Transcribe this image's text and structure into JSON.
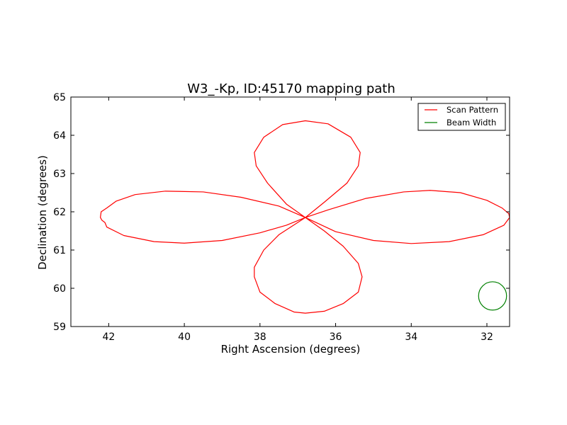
{
  "chart_data": {
    "type": "line",
    "title": "W3_-Kp, ID:45170 mapping path",
    "xlabel": "Right Ascension (degrees)",
    "ylabel": "Declination (degrees)",
    "xlim": [
      43.0,
      31.4
    ],
    "ylim": [
      59,
      65
    ],
    "x_ticks": [
      42,
      40,
      38,
      36,
      34,
      32
    ],
    "y_ticks": [
      59,
      60,
      61,
      62,
      63,
      64,
      65
    ],
    "grid": false,
    "legend": {
      "position": "top-right",
      "entries": [
        "Scan Pattern",
        "Beam Width"
      ]
    },
    "series": [
      {
        "name": "Scan Pattern",
        "color": "#ff0000",
        "points": [
          [
            36.8,
            61.85
          ],
          [
            37.5,
            62.15
          ],
          [
            38.5,
            62.38
          ],
          [
            39.5,
            62.52
          ],
          [
            40.5,
            62.54
          ],
          [
            41.3,
            62.45
          ],
          [
            41.8,
            62.28
          ],
          [
            42.05,
            62.1
          ],
          [
            42.2,
            62.0
          ],
          [
            42.22,
            61.85
          ],
          [
            42.18,
            61.78
          ],
          [
            42.1,
            61.72
          ],
          [
            42.05,
            61.6
          ],
          [
            41.6,
            61.38
          ],
          [
            40.8,
            61.22
          ],
          [
            40.0,
            61.18
          ],
          [
            39.0,
            61.25
          ],
          [
            38.0,
            61.45
          ],
          [
            37.3,
            61.65
          ],
          [
            36.8,
            61.85
          ],
          [
            36.3,
            62.25
          ],
          [
            35.7,
            62.75
          ],
          [
            35.4,
            63.2
          ],
          [
            35.35,
            63.55
          ],
          [
            35.6,
            63.95
          ],
          [
            36.2,
            64.3
          ],
          [
            36.8,
            64.38
          ],
          [
            37.4,
            64.28
          ],
          [
            37.9,
            63.95
          ],
          [
            38.15,
            63.55
          ],
          [
            38.1,
            63.2
          ],
          [
            37.8,
            62.75
          ],
          [
            37.3,
            62.2
          ],
          [
            36.8,
            61.85
          ],
          [
            36.2,
            62.05
          ],
          [
            35.2,
            62.35
          ],
          [
            34.2,
            62.52
          ],
          [
            33.5,
            62.56
          ],
          [
            32.7,
            62.5
          ],
          [
            32.0,
            62.3
          ],
          [
            31.6,
            62.1
          ],
          [
            31.42,
            61.95
          ],
          [
            31.4,
            61.85
          ],
          [
            31.55,
            61.65
          ],
          [
            32.1,
            61.4
          ],
          [
            33.0,
            61.22
          ],
          [
            34.0,
            61.17
          ],
          [
            35.0,
            61.25
          ],
          [
            36.0,
            61.48
          ],
          [
            36.8,
            61.85
          ],
          [
            37.5,
            61.4
          ],
          [
            37.9,
            61.0
          ],
          [
            38.15,
            60.55
          ],
          [
            38.15,
            60.3
          ],
          [
            38.0,
            59.9
          ],
          [
            37.6,
            59.6
          ],
          [
            37.1,
            59.38
          ],
          [
            36.8,
            59.35
          ],
          [
            36.3,
            59.4
          ],
          [
            35.8,
            59.6
          ],
          [
            35.4,
            59.9
          ],
          [
            35.3,
            60.3
          ],
          [
            35.4,
            60.65
          ],
          [
            35.8,
            61.1
          ],
          [
            36.3,
            61.5
          ],
          [
            36.8,
            61.85
          ]
        ]
      },
      {
        "name": "Beam Width",
        "color": "#008000",
        "shape": "circle",
        "center": [
          31.85,
          59.8
        ],
        "radius_deg": 0.37
      }
    ]
  }
}
